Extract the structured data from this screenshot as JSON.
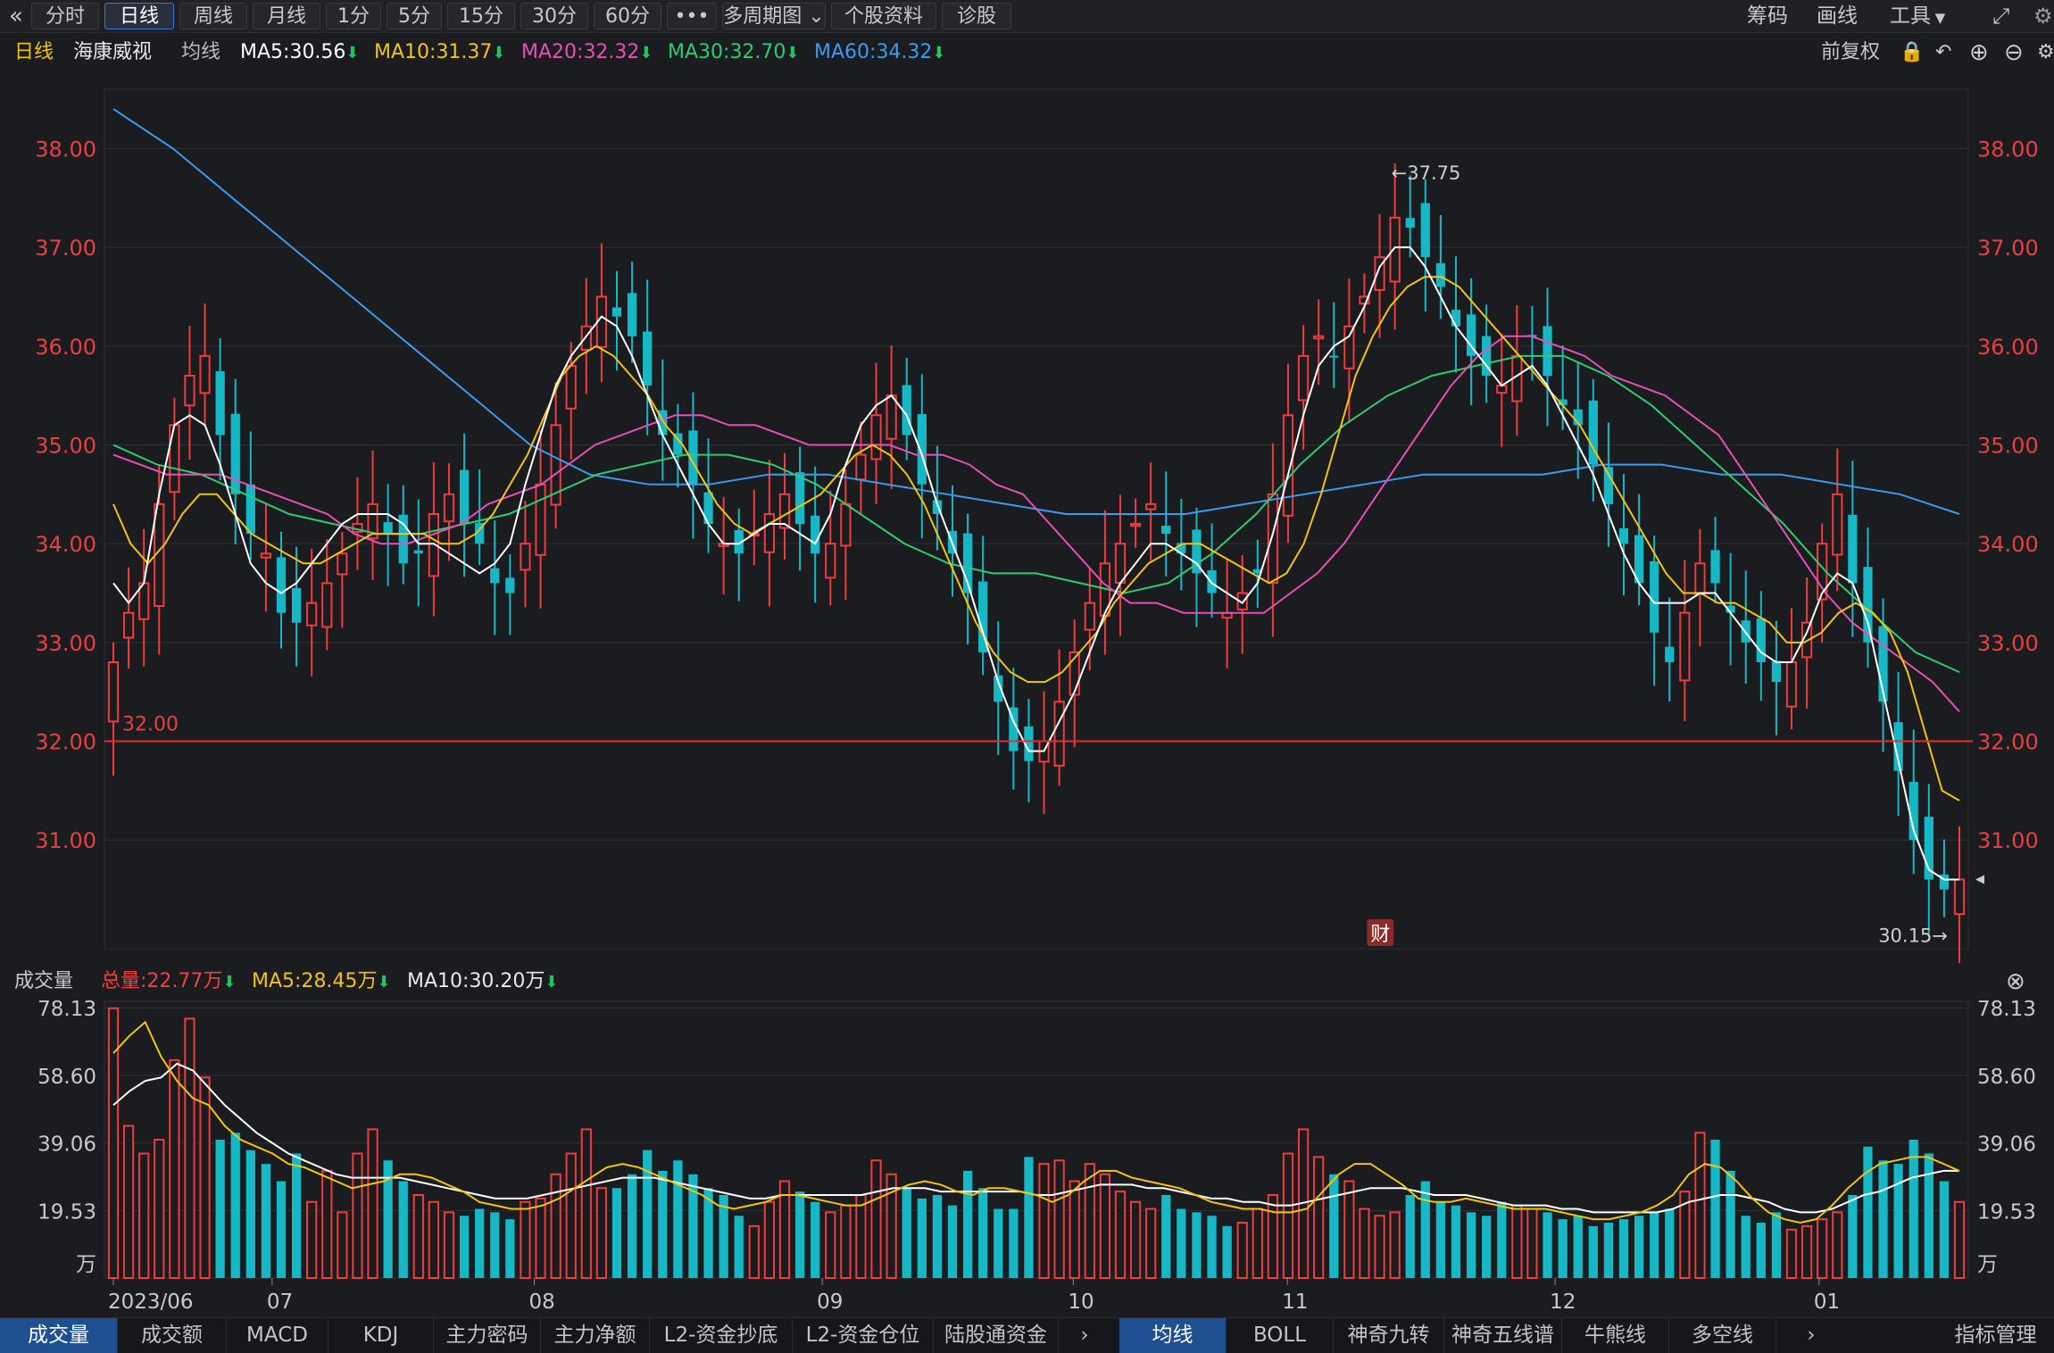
{
  "toolbar": {
    "back_icon": "double-chevron-left-icon",
    "buttons": [
      "分时",
      "日线",
      "周线",
      "月线",
      "1分",
      "5分",
      "15分",
      "30分",
      "60分",
      "•••",
      "多周期图",
      "个股资料",
      "诊股"
    ],
    "active": "日线",
    "right": [
      "筹码",
      "画线",
      "工具"
    ],
    "fullscreen_icon": "fullscreen-icon"
  },
  "header": {
    "period": "日线",
    "stock_name": "海康威视",
    "ma_label": "均线",
    "ma": [
      {
        "label": "MA5:30.56",
        "color": "#ffffff"
      },
      {
        "label": "MA10:31.37",
        "color": "#f2c411"
      },
      {
        "label": "MA20:32.32",
        "color": "#e84fb5"
      },
      {
        "label": "MA30:32.70",
        "color": "#2ecc71"
      },
      {
        "label": "MA60:34.32",
        "color": "#3b9bf0"
      }
    ],
    "restore": "前复权",
    "icons": [
      "lock-icon",
      "undo-icon",
      "zoom-in-icon",
      "zoom-out-icon",
      "settings-icon"
    ]
  },
  "price_axis": {
    "ticks": [
      "38.00",
      "37.00",
      "36.00",
      "35.00",
      "34.00",
      "33.00",
      "32.00",
      "31.00"
    ],
    "min": 29.9,
    "max": 38.6
  },
  "annotations": {
    "high": "37.75",
    "low": "30.15",
    "hline": "32.00",
    "caibao_badge": "财"
  },
  "volume": {
    "title": "成交量",
    "total": "总量:22.77万",
    "ma5": "MA5:28.45万",
    "ma10": "MA10:30.20万",
    "ticks": [
      "78.13",
      "58.60",
      "39.06",
      "19.53"
    ],
    "unit": "万",
    "max": 80
  },
  "x_axis": [
    "2023/06",
    "07",
    "08",
    "09",
    "10",
    "11",
    "12",
    "01"
  ],
  "chart_data": {
    "type": "candlestick",
    "price_series": [
      32.8,
      33.3,
      33.6,
      34.4,
      35.2,
      35.7,
      35.9,
      35.1,
      34.5,
      34.1,
      33.9,
      33.3,
      33.2,
      33.4,
      33.6,
      33.9,
      34.2,
      34.4,
      34.1,
      33.8,
      33.9,
      34.3,
      34.5,
      34.2,
      34.0,
      33.6,
      33.5,
      34.0,
      34.6,
      35.2,
      35.8,
      36.2,
      36.5,
      36.3,
      36.1,
      35.6,
      35.1,
      34.9,
      34.6,
      34.2,
      34.0,
      33.9,
      34.1,
      34.3,
      34.5,
      34.2,
      33.9,
      34.0,
      34.4,
      34.9,
      35.3,
      35.5,
      35.1,
      34.6,
      34.3,
      33.9,
      33.5,
      32.9,
      32.4,
      31.9,
      31.8,
      32.0,
      32.4,
      32.9,
      33.4,
      33.8,
      34.0,
      34.2,
      34.4,
      34.1,
      33.9,
      33.7,
      33.5,
      33.3,
      33.5,
      33.7,
      34.5,
      35.3,
      35.9,
      36.1,
      35.9,
      36.2,
      36.5,
      36.9,
      37.3,
      37.2,
      36.9,
      36.6,
      36.2,
      35.9,
      35.7,
      35.6,
      35.9,
      36.1,
      35.7,
      35.4,
      35.2,
      34.8,
      34.4,
      34.0,
      33.6,
      33.1,
      32.8,
      33.3,
      33.8,
      33.6,
      33.3,
      33.0,
      32.8,
      32.6,
      32.8,
      33.2,
      34.0,
      34.5,
      33.6,
      33.0,
      32.4,
      31.7,
      31.0,
      30.6,
      30.5,
      30.6
    ],
    "ma5": [
      33.6,
      33.4,
      33.6,
      34.5,
      35.2,
      35.3,
      35.2,
      34.8,
      34.3,
      33.8,
      33.6,
      33.5,
      33.6,
      33.8,
      34.0,
      34.2,
      34.3,
      34.3,
      34.3,
      34.2,
      34.0,
      34.0,
      33.9,
      33.8,
      33.7,
      33.8,
      34.0,
      34.6,
      35.1,
      35.6,
      35.9,
      36.1,
      36.3,
      36.2,
      35.9,
      35.5,
      35.1,
      34.8,
      34.5,
      34.2,
      34.0,
      34.0,
      34.1,
      34.2,
      34.2,
      34.1,
      34.0,
      34.3,
      34.8,
      35.2,
      35.4,
      35.5,
      35.3,
      34.9,
      34.4,
      34.0,
      33.6,
      33.1,
      32.6,
      32.2,
      31.9,
      31.9,
      32.2,
      32.5,
      32.9,
      33.3,
      33.6,
      33.8,
      34.0,
      34.0,
      33.9,
      33.8,
      33.6,
      33.5,
      33.4,
      33.6,
      34.1,
      34.7,
      35.3,
      35.8,
      36.0,
      36.1,
      36.4,
      36.8,
      37.0,
      37.0,
      36.8,
      36.5,
      36.2,
      36.0,
      35.8,
      35.6,
      35.7,
      35.8,
      35.6,
      35.3,
      35.0,
      34.7,
      34.3,
      33.9,
      33.6,
      33.4,
      33.4,
      33.4,
      33.5,
      33.5,
      33.3,
      33.1,
      32.9,
      32.8,
      32.8,
      33.1,
      33.5,
      33.7,
      33.6,
      33.2,
      32.5,
      31.8,
      31.1,
      30.7,
      30.6,
      30.6
    ],
    "ma10": [
      34.4,
      34.0,
      33.8,
      34.0,
      34.3,
      34.5,
      34.5,
      34.3,
      34.1,
      34.0,
      33.9,
      33.8,
      33.8,
      33.9,
      34.0,
      34.1,
      34.1,
      34.1,
      34.1,
      34.0,
      34.0,
      34.1,
      34.3,
      34.6,
      34.9,
      35.3,
      35.7,
      35.9,
      36.0,
      35.9,
      35.7,
      35.5,
      35.2,
      35.0,
      34.7,
      34.4,
      34.2,
      34.1,
      34.2,
      34.3,
      34.4,
      34.5,
      34.7,
      34.9,
      35.0,
      34.9,
      34.7,
      34.4,
      34.0,
      33.6,
      33.2,
      32.9,
      32.7,
      32.6,
      32.6,
      32.7,
      32.9,
      33.1,
      33.4,
      33.6,
      33.8,
      33.9,
      34.0,
      34.0,
      33.9,
      33.8,
      33.7,
      33.6,
      33.7,
      34.0,
      34.5,
      35.1,
      35.7,
      36.1,
      36.4,
      36.6,
      36.7,
      36.7,
      36.6,
      36.4,
      36.2,
      36.0,
      35.8,
      35.6,
      35.4,
      35.2,
      34.9,
      34.6,
      34.3,
      34.0,
      33.7,
      33.5,
      33.5,
      33.4,
      33.4,
      33.3,
      33.2,
      33.0,
      33.0,
      33.1,
      33.3,
      33.4,
      33.3,
      33.1,
      32.7,
      32.1,
      31.5,
      31.4
    ],
    "ma20": [
      34.9,
      34.8,
      34.7,
      34.7,
      34.7,
      34.6,
      34.5,
      34.4,
      34.3,
      34.1,
      34.0,
      34.0,
      34.1,
      34.2,
      34.4,
      34.5,
      34.6,
      34.8,
      35.0,
      35.1,
      35.2,
      35.3,
      35.3,
      35.2,
      35.2,
      35.1,
      35.0,
      35.0,
      35.0,
      35.0,
      34.9,
      34.9,
      34.8,
      34.6,
      34.5,
      34.2,
      33.9,
      33.6,
      33.4,
      33.4,
      33.3,
      33.3,
      33.3,
      33.3,
      33.5,
      33.7,
      34.0,
      34.4,
      34.8,
      35.2,
      35.6,
      35.9,
      36.1,
      36.1,
      36.0,
      35.9,
      35.7,
      35.6,
      35.5,
      35.3,
      35.1,
      34.7,
      34.3,
      33.9,
      33.5,
      33.2,
      33.0,
      32.8,
      32.6,
      32.3
    ],
    "ma30": [
      35.0,
      34.8,
      34.7,
      34.5,
      34.3,
      34.2,
      34.1,
      34.1,
      34.2,
      34.3,
      34.5,
      34.7,
      34.8,
      34.9,
      34.9,
      34.8,
      34.6,
      34.3,
      34.0,
      33.8,
      33.7,
      33.7,
      33.6,
      33.5,
      33.6,
      33.9,
      34.3,
      34.8,
      35.2,
      35.5,
      35.7,
      35.8,
      35.9,
      35.9,
      35.7,
      35.4,
      35.0,
      34.6,
      34.2,
      33.7,
      33.3,
      32.9,
      32.7
    ],
    "ma60": [
      38.4,
      38.0,
      37.5,
      37.0,
      36.5,
      36.0,
      35.5,
      35.0,
      34.7,
      34.6,
      34.6,
      34.7,
      34.7,
      34.6,
      34.5,
      34.4,
      34.3,
      34.3,
      34.3,
      34.4,
      34.5,
      34.6,
      34.7,
      34.7,
      34.7,
      34.8,
      34.8,
      34.7,
      34.7,
      34.6,
      34.5,
      34.3
    ],
    "volume_values": [
      78,
      44,
      36,
      40,
      63,
      75,
      58,
      40,
      42,
      37,
      33,
      28,
      36,
      22,
      31,
      19,
      36,
      43,
      34,
      28,
      24,
      22,
      19,
      18,
      20,
      19,
      17,
      22,
      23,
      30,
      36,
      43,
      26,
      26,
      30,
      37,
      31,
      34,
      30,
      26,
      24,
      18,
      15,
      22,
      28,
      25,
      22,
      19,
      21,
      24,
      34,
      30,
      26,
      23,
      24,
      21,
      31,
      26,
      20,
      20,
      35,
      33,
      34,
      28,
      33,
      30,
      25,
      22,
      20,
      24,
      20,
      19,
      18,
      15,
      16,
      20,
      24,
      36,
      43,
      35,
      30,
      28,
      20,
      18,
      19,
      24,
      28,
      22,
      21,
      19,
      18,
      22,
      21,
      20,
      19,
      17,
      18,
      15,
      16,
      17,
      18,
      19,
      20,
      25,
      42,
      40,
      31,
      18,
      16,
      19,
      14,
      15,
      17,
      19,
      24,
      38,
      34,
      33,
      40,
      36,
      28,
      22
    ],
    "volume_ma5": [
      65,
      70,
      74,
      64,
      57,
      52,
      50,
      44,
      40,
      38,
      36,
      33,
      32,
      30,
      28,
      26,
      27,
      28,
      30,
      30,
      29,
      27,
      25,
      22,
      21,
      20,
      20,
      21,
      23,
      26,
      29,
      32,
      33,
      32,
      30,
      28,
      26,
      24,
      21,
      20,
      21,
      22,
      24,
      24,
      23,
      22,
      21,
      21,
      23,
      25,
      27,
      28,
      27,
      25,
      24,
      26,
      26,
      25,
      24,
      22,
      24,
      28,
      31,
      31,
      29,
      28,
      27,
      26,
      24,
      22,
      21,
      20,
      20,
      19,
      19,
      20,
      25,
      30,
      33,
      33,
      30,
      27,
      23,
      22,
      22,
      23,
      22,
      21,
      20,
      20,
      20,
      19,
      18,
      17,
      17,
      18,
      19,
      21,
      24,
      30,
      33,
      32,
      28,
      23,
      19,
      17,
      16,
      17,
      21,
      26,
      30,
      33,
      34,
      35,
      35,
      33,
      31
    ],
    "volume_ma10": [
      50,
      54,
      57,
      58,
      62,
      60,
      55,
      50,
      46,
      42,
      39,
      36,
      34,
      32,
      30,
      29,
      29,
      29,
      29,
      28,
      27,
      26,
      25,
      24,
      23,
      23,
      23,
      24,
      25,
      26,
      27,
      28,
      29,
      29,
      29,
      28,
      27,
      26,
      25,
      24,
      23,
      23,
      24,
      24,
      24,
      24,
      24,
      24,
      25,
      26,
      26,
      26,
      25,
      25,
      25,
      25,
      25,
      25,
      24,
      24,
      25,
      26,
      27,
      27,
      27,
      26,
      26,
      25,
      24,
      23,
      23,
      22,
      22,
      21,
      21,
      22,
      23,
      24,
      25,
      26,
      26,
      26,
      25,
      24,
      24,
      24,
      23,
      22,
      21,
      21,
      21,
      20,
      20,
      19,
      19,
      19,
      19,
      19,
      20,
      22,
      23,
      24,
      24,
      23,
      22,
      20,
      19,
      19,
      20,
      22,
      24,
      25,
      27,
      29,
      30,
      31,
      31
    ]
  },
  "bottom_tabs": [
    "成交量",
    "成交额",
    "MACD",
    "KDJ",
    "主力密码",
    "主力净额",
    "L2-资金抄底",
    "L2-资金仓位",
    "陆股通资金"
  ],
  "bottom_tabs_right": [
    "均线",
    "BOLL",
    "神奇九转",
    "神奇五线谱",
    "牛熊线",
    "多空线"
  ],
  "indicator_manage": "指标管理",
  "close_icon": "close-circle-icon"
}
